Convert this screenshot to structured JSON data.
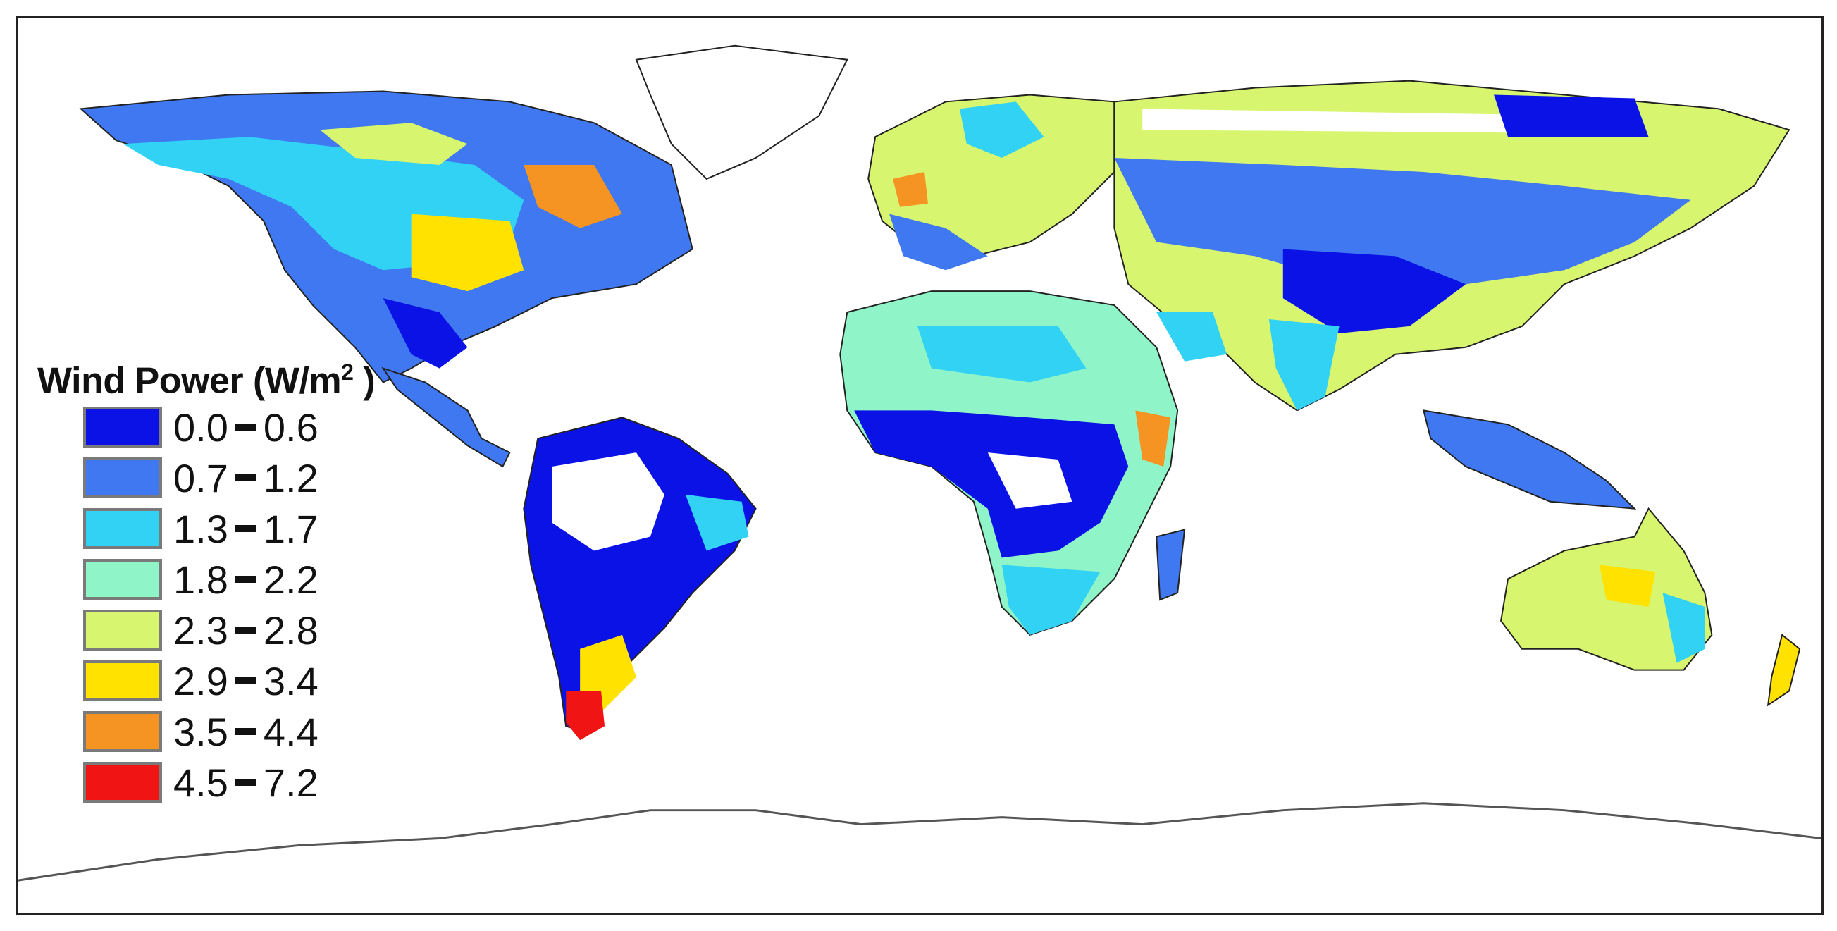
{
  "legend": {
    "title": "Wind Power (W/m",
    "title_sup": "2",
    "title_close": " )",
    "items": [
      {
        "min": "0.0",
        "max": "0.6",
        "color": "#0a12e6"
      },
      {
        "min": "0.7",
        "max": "1.2",
        "color": "#3f78f0"
      },
      {
        "min": "1.3",
        "max": "1.7",
        "color": "#32d2f5"
      },
      {
        "min": "1.8",
        "max": "2.2",
        "color": "#8ff5c8"
      },
      {
        "min": "2.3",
        "max": "2.8",
        "color": "#d7f56e"
      },
      {
        "min": "2.9",
        "max": "3.4",
        "color": "#ffe200"
      },
      {
        "min": "3.5",
        "max": "4.4",
        "color": "#f59423"
      },
      {
        "min": "4.5",
        "max": "7.2",
        "color": "#f01414"
      }
    ]
  },
  "map": {
    "projection": "equirectangular",
    "ocean_color": "#ffffff",
    "coastline_color": "#222222",
    "no_data_color": "#ffffff"
  }
}
